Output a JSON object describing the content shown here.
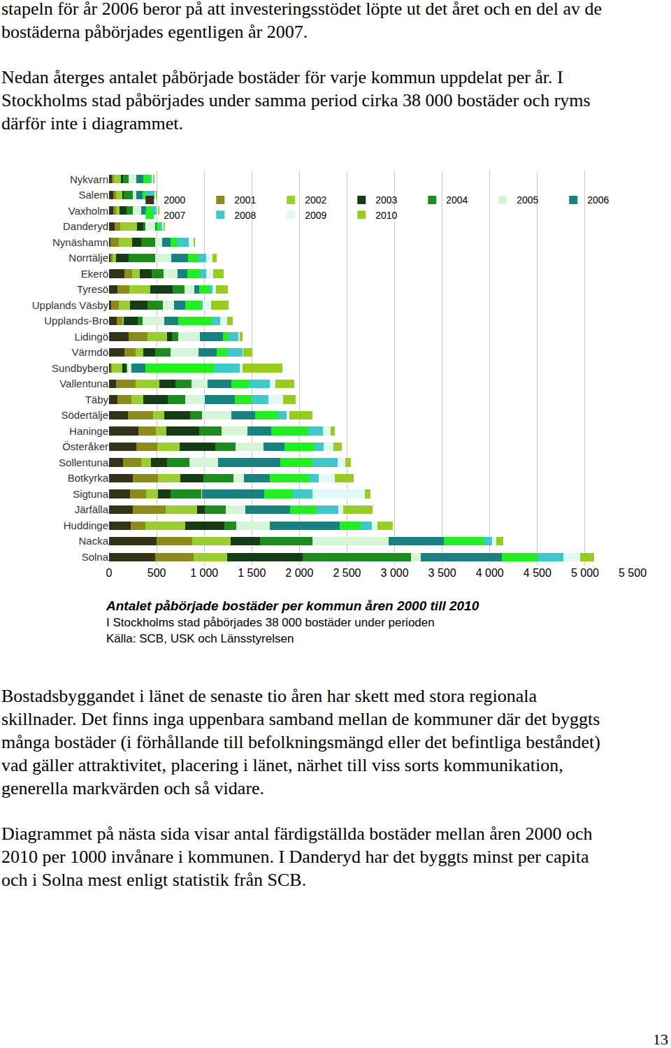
{
  "text_before": [
    [
      "stapeln för år 2006 beror på att investeringsstödet löpte ut det året och en del av de",
      "bostäderna påbörjades egentligen år 2007."
    ],
    [
      "Nedan återges antalet påbörjade bostäder för varje kommun uppdelat per år. I",
      "Stockholms stad påbörjades under samma period cirka 38 000 bostäder och ryms",
      "därför inte i diagrammet."
    ]
  ],
  "chart_data": {
    "type": "bar",
    "orientation": "horizontal",
    "stacked": true,
    "grid": true,
    "legend": "top right",
    "categories": [
      "Nykvarn",
      "Salem",
      "Vaxholm",
      "Danderyd",
      "Nynäshamn",
      "Norrtälje",
      "Ekerö",
      "Tyresö",
      "Upplands Väsby",
      "Upplands-Bro",
      "Lidingö",
      "Värmdö",
      "Sundbyberg",
      "Vallentuna",
      "Täby",
      "Södertälje",
      "Haninge",
      "Österåker",
      "Sollentuna",
      "Botkyrka",
      "Sigtuna",
      "Järfälla",
      "Huddinge",
      "Nacka",
      "Solna"
    ],
    "xlim": [
      0,
      5500
    ],
    "xticks": [
      0,
      500,
      {
        "value": 1000,
        "label": "1 000"
      },
      {
        "value": 1500,
        "label": "1 500"
      },
      {
        "value": 2000,
        "label": "2 000"
      },
      {
        "value": 2500,
        "label": "2 500"
      },
      {
        "value": 3000,
        "label": "3 000"
      },
      {
        "value": 3500,
        "label": "3 500"
      },
      {
        "value": 4000,
        "label": "4 000"
      },
      {
        "value": 4500,
        "label": "4 500"
      },
      {
        "value": 5000,
        "label": "5 000"
      },
      {
        "value": 5500,
        "label": "5 500"
      }
    ],
    "series": [
      {
        "name": "2000",
        "color": "#33331a",
        "values": [
          29,
          44,
          44,
          59,
          15,
          15,
          162,
          88,
          22,
          81,
          206,
          162,
          15,
          73,
          88,
          198,
          308,
          286,
          147,
          250,
          220,
          250,
          228,
          499,
          485
        ]
      },
      {
        "name": "2001",
        "color": "#8b8b1e",
        "values": [
          22,
          29,
          29,
          59,
          88,
          22,
          81,
          125,
          81,
          59,
          198,
          117,
          15,
          206,
          147,
          264,
          184,
          220,
          191,
          264,
          169,
          345,
          154,
          374,
          404
        ]
      },
      {
        "name": "2002",
        "color": "#9acd32",
        "values": [
          73,
          66,
          37,
          176,
          140,
          37,
          81,
          220,
          117,
          15,
          206,
          81,
          110,
          250,
          125,
          117,
          110,
          235,
          103,
          235,
          125,
          330,
          419,
          404,
          352
        ]
      },
      {
        "name": "2003",
        "color": "#173a17",
        "values": [
          22,
          15,
          73,
          66,
          95,
          132,
          125,
          235,
          184,
          147,
          51,
          125,
          37,
          169,
          257,
          272,
          345,
          374,
          169,
          242,
          132,
          81,
          411,
          308,
          793
        ]
      },
      {
        "name": "2004",
        "color": "#1e8b1e",
        "values": [
          59,
          95,
          66,
          22,
          147,
          279,
          125,
          125,
          162,
          51,
          66,
          162,
          15,
          169,
          184,
          125,
          235,
          213,
          235,
          316,
          323,
          220,
          125,
          551,
          1138
        ]
      },
      {
        "name": "2005",
        "color": "#d6f5d6",
        "values": [
          81,
          37,
          88,
          103,
          73,
          169,
          147,
          103,
          117,
          228,
          228,
          294,
          44,
          169,
          206,
          308,
          272,
          294,
          301,
          110,
          7,
          206,
          352,
          800,
          103
        ]
      },
      {
        "name": "2006",
        "color": "#1a8080",
        "values": [
          73,
          66,
          51,
          15,
          88,
          176,
          103,
          51,
          117,
          147,
          242,
          191,
          147,
          250,
          316,
          250,
          250,
          220,
          653,
          272,
          653,
          470,
          734,
          580,
          852
        ]
      },
      {
        "name": "2007",
        "color": "#22ee22",
        "values": [
          73,
          29,
          51,
          37,
          73,
          110,
          132,
          110,
          169,
          352,
          59,
          110,
          727,
          191,
          176,
          242,
          389,
          316,
          338,
          419,
          301,
          279,
          220,
          419,
          374
        ]
      },
      {
        "name": "2008",
        "color": "#40c8c8",
        "values": [
          15,
          95,
          59,
          22,
          117,
          81,
          66,
          29,
          15,
          88,
          103,
          162,
          264,
          213,
          176,
          88,
          154,
          95,
          264,
          95,
          206,
          228,
          117,
          88,
          272
        ]
      },
      {
        "name": "2009",
        "color": "#e0f8f8",
        "values": [
          15,
          15,
          15,
          15,
          51,
          66,
          73,
          37,
          88,
          73,
          15,
          7,
          29,
          59,
          154,
          29,
          81,
          103,
          81,
          169,
          551,
          51,
          59,
          44,
          176
        ]
      },
      {
        "name": "2010",
        "color": "#99cc22",
        "values": [
          15,
          15,
          15,
          15,
          15,
          44,
          110,
          125,
          184,
          59,
          29,
          95,
          419,
          198,
          132,
          242,
          44,
          88,
          59,
          198,
          59,
          308,
          162,
          73,
          147
        ]
      }
    ]
  },
  "caption": {
    "title": "Antalet påbörjade bostäder per kommun åren 2000 till 2010",
    "lines": [
      "I Stockholms stad påbörjades 38 000 bostäder under perioden",
      "Källa: SCB, USK och Länsstyrelsen"
    ]
  },
  "text_after": [
    [
      "Bostadsbyggandet i länet de senaste tio åren har skett med stora regionala",
      "skillnader. Det finns inga uppenbara samband mellan de kommuner där det byggts",
      "många bostäder (i förhållande till befolkningsmängd eller det befintliga beståndet)",
      "vad gäller attraktivitet, placering i länet, närhet till viss sorts kommunikation,",
      "generella markvärden och så vidare."
    ],
    [
      "Diagrammet på nästa sida visar antal färdigställda bostäder mellan åren 2000 och",
      "2010 per 1000 invånare i kommunen. I Danderyd har det byggts minst per capita",
      "och i Solna mest enligt statistik från SCB."
    ]
  ],
  "page_number": "13"
}
